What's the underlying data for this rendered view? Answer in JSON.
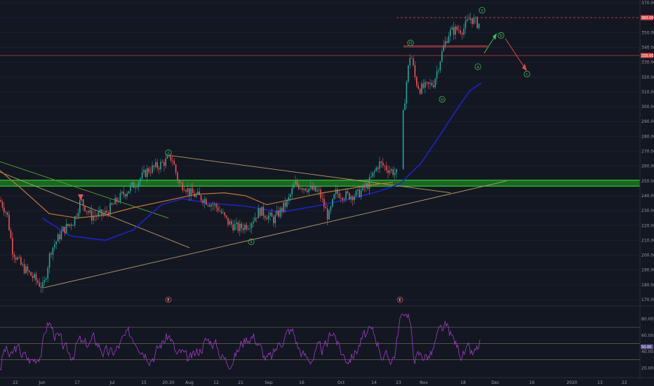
{
  "chart_data": {
    "type": "candlestick",
    "price_axis": {
      "min": 170,
      "max": 370,
      "ticks": [
        370,
        360,
        350,
        340,
        330,
        320,
        310,
        300,
        290,
        280,
        270,
        260,
        250,
        240,
        230,
        220,
        210,
        200,
        190,
        180,
        170
      ],
      "labels": [
        "370.00",
        "360.00",
        "350.00",
        "340.00",
        "330.00",
        "320.00",
        "310.00",
        "300.00",
        "290.00",
        "280.00",
        "270.00",
        "260.00",
        "250.00",
        "240.00",
        "230.00",
        "220.00",
        "210.00",
        "200.00",
        "190.00",
        "180.00",
        "170.00"
      ]
    },
    "rsi_axis": {
      "min": 10,
      "max": 95,
      "ticks": [
        80,
        60,
        40,
        20
      ],
      "labels": [
        "80.00",
        "60.00",
        "40.00",
        "20.00"
      ]
    },
    "time_axis_labels": [
      "22",
      "Jun",
      "17",
      "Jul",
      "15",
      "20:30",
      "Aug",
      "12",
      "21",
      "Sep",
      "16",
      "Oct",
      "14",
      "23",
      "Nov",
      "18",
      "Dec",
      "16",
      "2020",
      "13",
      "22"
    ],
    "price_tags": {
      "top": "360.00",
      "current": "335.00",
      "rsi": "50.00"
    },
    "levels": {
      "top_dashed": 360,
      "current": 334.5,
      "resistance": 341,
      "support_low": 246.5,
      "support_high": 250.5
    },
    "rsi_levels": [
      70,
      50,
      30
    ],
    "wave_labels": [
      {
        "text": "i",
        "t": 240,
        "price": 269
      },
      {
        "text": "ii",
        "t": 358,
        "price": 209
      },
      {
        "text": "iii",
        "t": 585,
        "price": 343
      },
      {
        "text": "iv",
        "t": 630,
        "price": 305
      },
      {
        "text": "v",
        "t": 687,
        "price": 365
      },
      {
        "text": "a",
        "t": 681,
        "price": 327
      },
      {
        "text": "b",
        "t": 714,
        "price": 348
      },
      {
        "text": "c",
        "t": 751,
        "price": 322
      }
    ],
    "event_markers": [
      {
        "text": "E",
        "t": 240
      },
      {
        "text": "E",
        "t": 570
      }
    ],
    "ma_blue": [
      [
        60,
        225
      ],
      [
        100,
        213
      ],
      [
        150,
        210
      ],
      [
        190,
        217
      ],
      [
        230,
        234
      ],
      [
        260,
        238
      ],
      [
        300,
        235
      ],
      [
        350,
        233
      ],
      [
        400,
        229
      ],
      [
        450,
        233
      ],
      [
        500,
        238
      ],
      [
        540,
        243
      ],
      [
        570,
        248
      ],
      [
        600,
        262
      ],
      [
        630,
        283
      ],
      [
        655,
        301
      ],
      [
        670,
        311
      ],
      [
        686,
        316
      ]
    ],
    "ma_orange": [
      [
        0,
        257
      ],
      [
        30,
        245
      ],
      [
        70,
        228
      ],
      [
        110,
        225
      ],
      [
        150,
        227
      ],
      [
        190,
        232
      ],
      [
        240,
        237
      ],
      [
        280,
        241
      ],
      [
        320,
        242
      ],
      [
        350,
        240
      ],
      [
        380,
        234
      ],
      [
        420,
        238
      ],
      [
        460,
        242
      ],
      [
        500,
        245
      ],
      [
        540,
        248
      ],
      [
        560,
        249
      ]
    ],
    "candle_path": [
      [
        0,
        237
      ],
      [
        10,
        228
      ],
      [
        18,
        203
      ],
      [
        30,
        193
      ],
      [
        45,
        186
      ],
      [
        62,
        178
      ],
      [
        72,
        203
      ],
      [
        90,
        217
      ],
      [
        105,
        223
      ],
      [
        115,
        237
      ],
      [
        130,
        226
      ],
      [
        150,
        228
      ],
      [
        175,
        241
      ],
      [
        195,
        249
      ],
      [
        210,
        257
      ],
      [
        225,
        260
      ],
      [
        245,
        266
      ],
      [
        255,
        248
      ],
      [
        263,
        247
      ],
      [
        270,
        242
      ],
      [
        290,
        238
      ],
      [
        310,
        232
      ],
      [
        325,
        222
      ],
      [
        340,
        218
      ],
      [
        355,
        221
      ],
      [
        370,
        230
      ],
      [
        390,
        224
      ],
      [
        410,
        236
      ],
      [
        420,
        248
      ],
      [
        440,
        245
      ],
      [
        455,
        242
      ],
      [
        468,
        225
      ],
      [
        478,
        242
      ],
      [
        495,
        240
      ],
      [
        510,
        241
      ],
      [
        525,
        248
      ],
      [
        540,
        262
      ],
      [
        550,
        259
      ],
      [
        565,
        255
      ],
      [
        575,
        296
      ],
      [
        580,
        320
      ],
      [
        585,
        337
      ],
      [
        592,
        318
      ],
      [
        598,
        312
      ],
      [
        610,
        314
      ],
      [
        618,
        316
      ],
      [
        625,
        328
      ],
      [
        632,
        340
      ],
      [
        640,
        350
      ],
      [
        650,
        352
      ],
      [
        660,
        352
      ],
      [
        670,
        360
      ],
      [
        680,
        356
      ]
    ]
  }
}
